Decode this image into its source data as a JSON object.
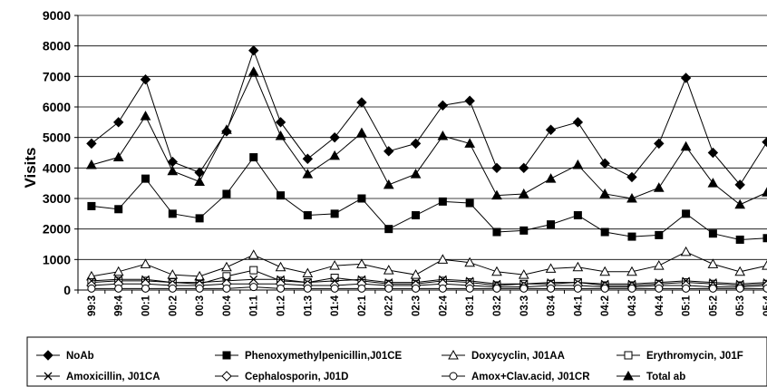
{
  "chart_data": {
    "type": "line",
    "title": "",
    "xlabel": "",
    "ylabel": "Visits",
    "ylim": [
      0,
      9000
    ],
    "yticks": [
      "0",
      "1000",
      "2000",
      "3000",
      "4000",
      "5000",
      "6000",
      "7000",
      "8000",
      "9000"
    ],
    "categories": [
      "99:3",
      "99:4",
      "00:1",
      "00:2",
      "00:3",
      "00:4",
      "01:1",
      "01:2",
      "01:3",
      "01:4",
      "02:1",
      "02:2",
      "02:3",
      "02:4",
      "03:1",
      "03:2",
      "03:3",
      "03:4",
      "04:1",
      "04:2",
      "04:3",
      "04:4",
      "05:1",
      "05:2",
      "05:3",
      "05:4"
    ],
    "grid": "horizontal",
    "legend_position": "bottom",
    "series": [
      {
        "name": "NoAb",
        "marker": "diamond-filled",
        "values": [
          4800,
          5500,
          6900,
          4200,
          3850,
          5200,
          7850,
          5500,
          4300,
          5000,
          6150,
          4550,
          4800,
          6050,
          6200,
          4000,
          4000,
          5250,
          5500,
          4150,
          3700,
          4800,
          6950,
          4500,
          3450,
          4850
        ]
      },
      {
        "name": "Phenoxymethylpenicillin,J01CE",
        "marker": "square-filled",
        "values": [
          2750,
          2650,
          3650,
          2500,
          2350,
          3150,
          4350,
          3100,
          2450,
          2500,
          3000,
          2000,
          2450,
          2900,
          2850,
          1900,
          1950,
          2150,
          2450,
          1900,
          1750,
          1800,
          2500,
          1850,
          1650,
          1700
        ]
      },
      {
        "name": "Doxycyclin, J01AA",
        "marker": "triangle-open",
        "values": [
          450,
          600,
          850,
          500,
          450,
          750,
          1150,
          750,
          550,
          800,
          850,
          650,
          500,
          1000,
          900,
          600,
          500,
          700,
          750,
          600,
          600,
          800,
          1250,
          850,
          600,
          800
        ]
      },
      {
        "name": "Erythromycin, J01F",
        "marker": "square-open",
        "values": [
          250,
          300,
          300,
          250,
          200,
          450,
          650,
          300,
          250,
          400,
          300,
          200,
          200,
          300,
          250,
          150,
          200,
          200,
          250,
          150,
          150,
          200,
          250,
          200,
          150,
          200
        ]
      },
      {
        "name": "Amoxicillin, J01CA",
        "marker": "x",
        "values": [
          300,
          350,
          350,
          250,
          250,
          300,
          350,
          350,
          250,
          300,
          350,
          250,
          250,
          350,
          300,
          200,
          200,
          250,
          250,
          200,
          200,
          250,
          300,
          250,
          200,
          250
        ]
      },
      {
        "name": "Cephalosporin, J01D",
        "marker": "diamond-open",
        "values": [
          150,
          200,
          200,
          150,
          150,
          200,
          200,
          200,
          150,
          150,
          200,
          150,
          150,
          200,
          150,
          100,
          100,
          150,
          150,
          100,
          100,
          150,
          150,
          100,
          100,
          150
        ]
      },
      {
        "name": "Amox+Clav.acid, J01CR",
        "marker": "circle-open",
        "values": [
          50,
          50,
          50,
          50,
          50,
          50,
          100,
          50,
          50,
          50,
          50,
          50,
          50,
          50,
          50,
          50,
          50,
          50,
          50,
          50,
          50,
          50,
          50,
          50,
          50,
          50
        ]
      },
      {
        "name": "Total ab",
        "marker": "triangle-filled",
        "values": [
          4100,
          4350,
          5700,
          3900,
          3550,
          5250,
          7150,
          5050,
          3800,
          4400,
          5150,
          3450,
          3800,
          5050,
          4800,
          3100,
          3150,
          3650,
          4100,
          3150,
          3000,
          3350,
          4700,
          3500,
          2800,
          3200
        ]
      }
    ]
  }
}
